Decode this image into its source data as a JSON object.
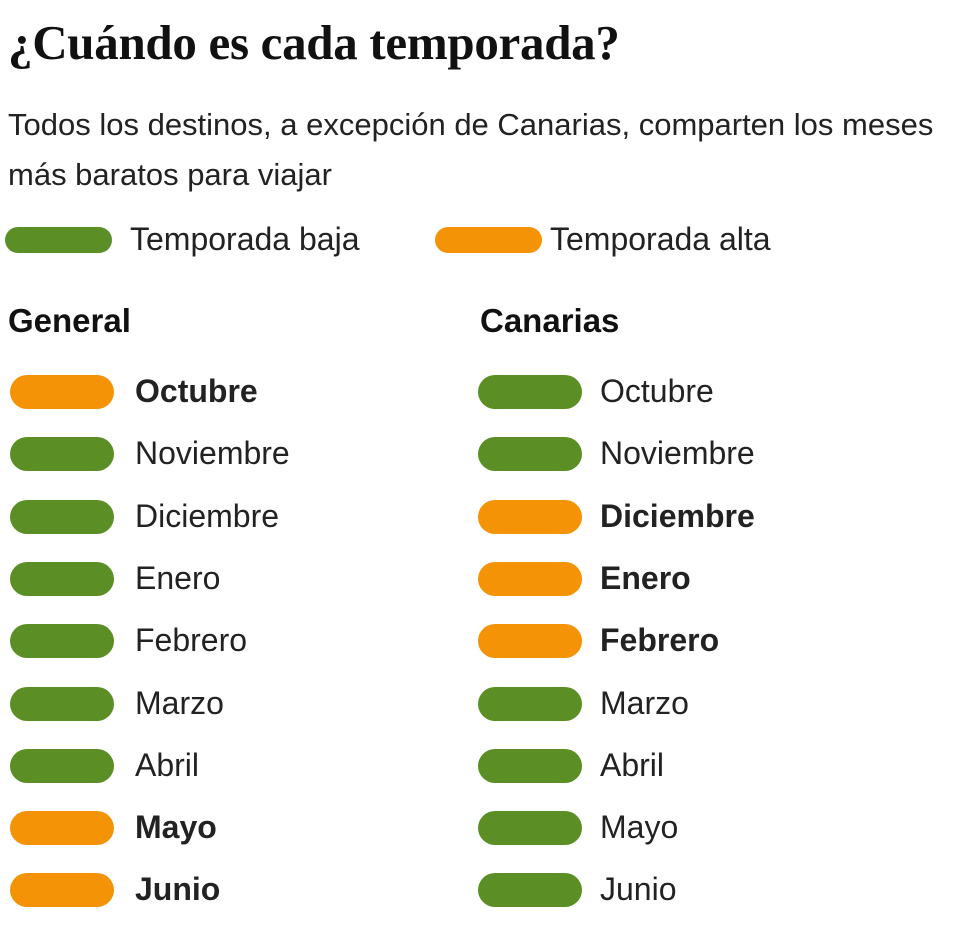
{
  "title": "¿Cuándo es cada temporada?",
  "subtitle": "Todos los destinos, a excepción de Canarias, comparten los meses más baratos para viajar",
  "legend": [
    {
      "label": "Temporada baja",
      "color": "#5b8f25"
    },
    {
      "label": "Temporada alta",
      "color": "#f39305"
    }
  ],
  "columns": [
    {
      "title": "General",
      "months": [
        {
          "name": "Octubre",
          "color": "#f39305"
        },
        {
          "name": "Noviembre",
          "color": "#5b8f25"
        },
        {
          "name": "Diciembre",
          "color": "#5b8f25"
        },
        {
          "name": "Enero",
          "color": "#5b8f25"
        },
        {
          "name": "Febrero",
          "color": "#5b8f25"
        },
        {
          "name": "Marzo",
          "color": "#5b8f25"
        },
        {
          "name": "Abril",
          "color": "#5b8f25"
        },
        {
          "name": "Mayo",
          "color": "#f39305"
        },
        {
          "name": "Junio",
          "color": "#f39305"
        }
      ]
    },
    {
      "title": "Canarias",
      "months": [
        {
          "name": "Octubre",
          "color": "#5b8f25"
        },
        {
          "name": "Noviembre",
          "color": "#5b8f25"
        },
        {
          "name": "Diciembre",
          "color": "#f39305"
        },
        {
          "name": "Enero",
          "color": "#f39305"
        },
        {
          "name": "Febrero",
          "color": "#f39305"
        },
        {
          "name": "Marzo",
          "color": "#5b8f25"
        },
        {
          "name": "Abril",
          "color": "#5b8f25"
        },
        {
          "name": "Mayo",
          "color": "#5b8f25"
        },
        {
          "name": "Junio",
          "color": "#5b8f25"
        }
      ]
    }
  ]
}
